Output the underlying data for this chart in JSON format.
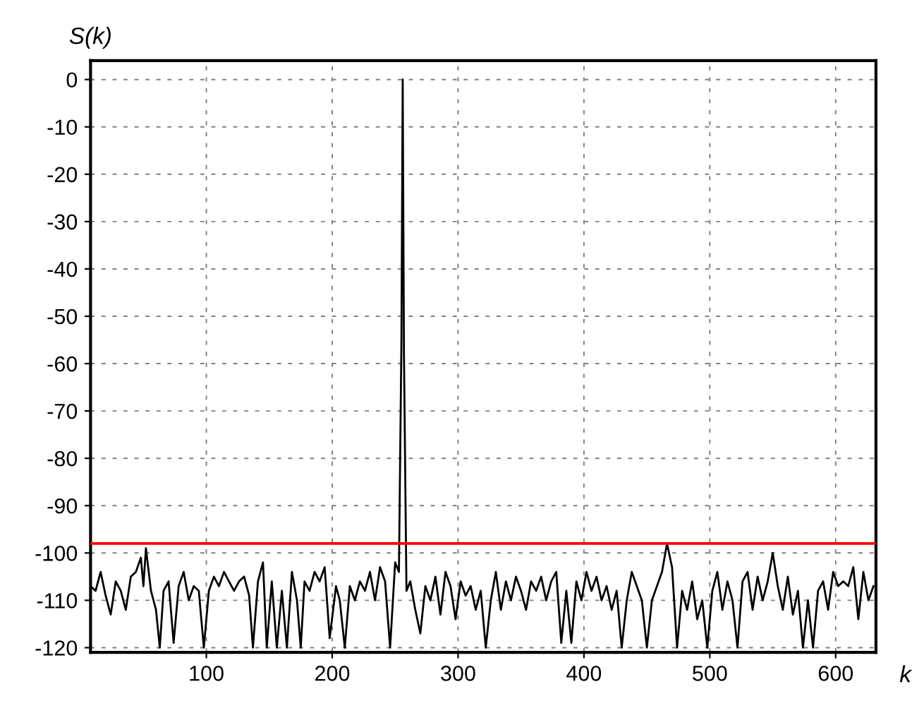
{
  "chart_data": {
    "type": "line",
    "xlabel": "k",
    "ylabel": "S(k)",
    "xlim": [
      8,
      632
    ],
    "ylim": [
      -121,
      4
    ],
    "xticks": [
      100,
      200,
      300,
      400,
      500,
      600
    ],
    "yticks": [
      0,
      -10,
      -20,
      -30,
      -40,
      -50,
      -60,
      -70,
      -80,
      -90,
      -100,
      -110,
      -120
    ],
    "grid": true,
    "marker": "none",
    "line_style": "solid",
    "ref_lines": [
      {
        "axis": "y",
        "value": -98,
        "color": "#ff0000"
      }
    ],
    "series": [
      {
        "color": "#000000",
        "x": [
          8,
          12,
          16,
          20,
          24,
          28,
          32,
          36,
          40,
          44,
          48,
          50,
          52,
          56,
          60,
          63,
          66,
          70,
          74,
          78,
          82,
          86,
          90,
          94,
          98,
          102,
          106,
          110,
          114,
          118,
          122,
          126,
          130,
          134,
          137,
          141,
          145,
          148,
          152,
          156,
          160,
          164,
          168,
          172,
          175,
          178,
          182,
          186,
          190,
          194,
          198,
          203,
          206,
          210,
          214,
          218,
          222,
          226,
          230,
          234,
          238,
          242,
          246,
          250,
          253,
          255,
          256,
          257,
          259,
          262,
          266,
          270,
          274,
          278,
          282,
          286,
          290,
          294,
          298,
          302,
          306,
          310,
          314,
          318,
          322,
          326,
          330,
          334,
          338,
          342,
          346,
          350,
          354,
          358,
          362,
          366,
          370,
          374,
          378,
          382,
          386,
          390,
          394,
          398,
          402,
          406,
          410,
          414,
          418,
          422,
          426,
          430,
          434,
          438,
          442,
          446,
          450,
          454,
          458,
          462,
          466,
          470,
          474,
          478,
          482,
          486,
          490,
          494,
          498,
          502,
          506,
          510,
          514,
          518,
          522,
          526,
          530,
          534,
          538,
          542,
          546,
          550,
          554,
          558,
          562,
          566,
          570,
          574,
          578,
          582,
          586,
          590,
          594,
          598,
          602,
          606,
          610,
          614,
          618,
          622,
          626,
          630
        ],
        "values": [
          -107,
          -108,
          -104,
          -109,
          -113,
          -106,
          -108,
          -112,
          -105,
          -104,
          -101,
          -107,
          -99,
          -108,
          -112,
          -120,
          -108,
          -106,
          -119,
          -107,
          -104,
          -110,
          -107,
          -108,
          -120,
          -108,
          -105,
          -107,
          -104,
          -106,
          -108,
          -106,
          -105,
          -109,
          -120,
          -106,
          -102,
          -120,
          -106,
          -120,
          -108,
          -120,
          -104,
          -110,
          -120,
          -106,
          -108,
          -104,
          -106,
          -103,
          -118,
          -107,
          -110,
          -120,
          -107,
          -110,
          -106,
          -108,
          -104,
          -110,
          -103,
          -106,
          -120,
          -102,
          -104,
          -55,
          0,
          -58,
          -108,
          -106,
          -112,
          -117,
          -107,
          -110,
          -105,
          -113,
          -104,
          -107,
          -114,
          -106,
          -109,
          -107,
          -112,
          -108,
          -120,
          -110,
          -104,
          -112,
          -106,
          -110,
          -105,
          -108,
          -112,
          -106,
          -108,
          -105,
          -110,
          -106,
          -104,
          -119,
          -108,
          -119,
          -106,
          -110,
          -104,
          -108,
          -105,
          -110,
          -107,
          -112,
          -108,
          -120,
          -110,
          -104,
          -107,
          -110,
          -120,
          -110,
          -107,
          -104,
          -98,
          -103,
          -120,
          -108,
          -112,
          -106,
          -114,
          -110,
          -120,
          -108,
          -104,
          -112,
          -106,
          -110,
          -120,
          -106,
          -104,
          -112,
          -105,
          -110,
          -106,
          -100,
          -107,
          -112,
          -105,
          -113,
          -108,
          -120,
          -110,
          -120,
          -108,
          -106,
          -112,
          -104,
          -107,
          -106,
          -107,
          -103,
          -114,
          -104,
          -110,
          -107
        ]
      }
    ]
  }
}
